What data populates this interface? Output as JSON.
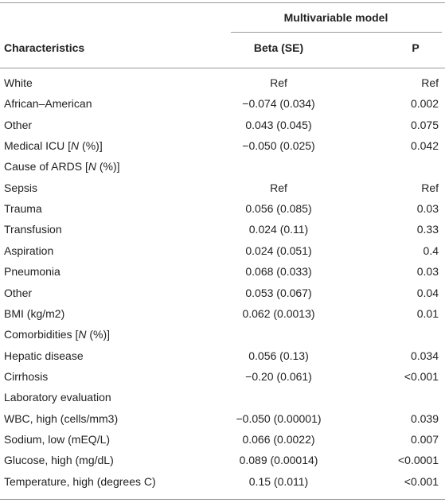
{
  "table": {
    "group_header": "Multivariable model",
    "columns": [
      "Characteristics",
      "Beta (SE)",
      "P"
    ],
    "rows": [
      {
        "label": "White",
        "beta": "Ref",
        "p": "Ref"
      },
      {
        "label": "African–American",
        "beta": "−0.074 (0.034)",
        "p": "0.002"
      },
      {
        "label": "Other",
        "beta": "0.043 (0.045)",
        "p": "0.075"
      },
      {
        "label": [
          "Medical ICU [",
          "N",
          " (%)]"
        ],
        "beta": "−0.050 (0.025)",
        "p": "0.042"
      },
      {
        "label": [
          "Cause of ARDS [",
          "N",
          " (%)]"
        ]
      },
      {
        "label": "Sepsis",
        "beta": "Ref",
        "p": "Ref"
      },
      {
        "label": "Trauma",
        "beta": "0.056 (0.085)",
        "p": "0.03"
      },
      {
        "label": "Transfusion",
        "beta": "0.024 (0.11)",
        "p": "0.33"
      },
      {
        "label": "Aspiration",
        "beta": "0.024 (0.051)",
        "p": "0.4"
      },
      {
        "label": "Pneumonia",
        "beta": "0.068 (0.033)",
        "p": "0.03"
      },
      {
        "label": "Other",
        "beta": "0.053 (0.067)",
        "p": "0.04"
      },
      {
        "label": "BMI (kg/m2)",
        "beta": "0.062 (0.0013)",
        "p": "0.01"
      },
      {
        "label": [
          "Comorbidities [",
          "N",
          " (%)]"
        ]
      },
      {
        "label": "Hepatic disease",
        "beta": "0.056 (0.13)",
        "p": "0.034"
      },
      {
        "label": "Cirrhosis",
        "beta": "−0.20 (0.061)",
        "p": "<0.001"
      },
      {
        "label": "Laboratory evaluation"
      },
      {
        "label": "WBC, high (cells/mm3)",
        "beta": "−0.050 (0.00001)",
        "p": "0.039"
      },
      {
        "label": "Sodium, low (mEQ/L)",
        "beta": "0.066 (0.0022)",
        "p": "0.007"
      },
      {
        "label": "Glucose, high (mg/dL)",
        "beta": "0.089 (0.00014)",
        "p": "<0.0001"
      },
      {
        "label": "Temperature, high (degrees C)",
        "beta": "0.15 (0.011)",
        "p": "<0.001"
      }
    ]
  }
}
